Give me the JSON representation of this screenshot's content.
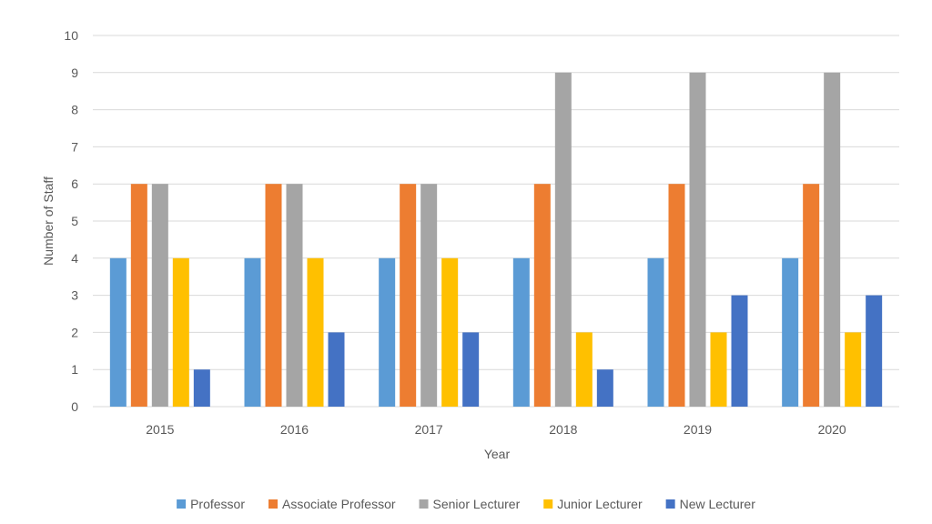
{
  "chart_data": {
    "type": "bar",
    "categories": [
      "2015",
      "2016",
      "2017",
      "2018",
      "2019",
      "2020"
    ],
    "series": [
      {
        "name": "Professor",
        "color": "#5B9BD5",
        "values": [
          4,
          4,
          4,
          4,
          4,
          4
        ]
      },
      {
        "name": "Associate Professor",
        "color": "#ED7D31",
        "values": [
          6,
          6,
          6,
          6,
          6,
          6
        ]
      },
      {
        "name": "Senior Lecturer",
        "color": "#A5A5A5",
        "values": [
          6,
          6,
          6,
          9,
          9,
          9
        ]
      },
      {
        "name": "Junior Lecturer",
        "color": "#FFC000",
        "values": [
          4,
          4,
          4,
          2,
          2,
          2
        ]
      },
      {
        "name": "New Lecturer",
        "color": "#4472C4",
        "values": [
          1,
          2,
          2,
          1,
          3,
          3
        ]
      }
    ],
    "title": "",
    "xlabel": "Year",
    "ylabel": "Number of Staff",
    "ylim": [
      0,
      10
    ],
    "yticks": [
      0,
      1,
      2,
      3,
      4,
      5,
      6,
      7,
      8,
      9,
      10
    ],
    "grid": true,
    "legend_position": "bottom",
    "gridline_color": "#D9D9D9",
    "axis_color": "#D9D9D9"
  }
}
